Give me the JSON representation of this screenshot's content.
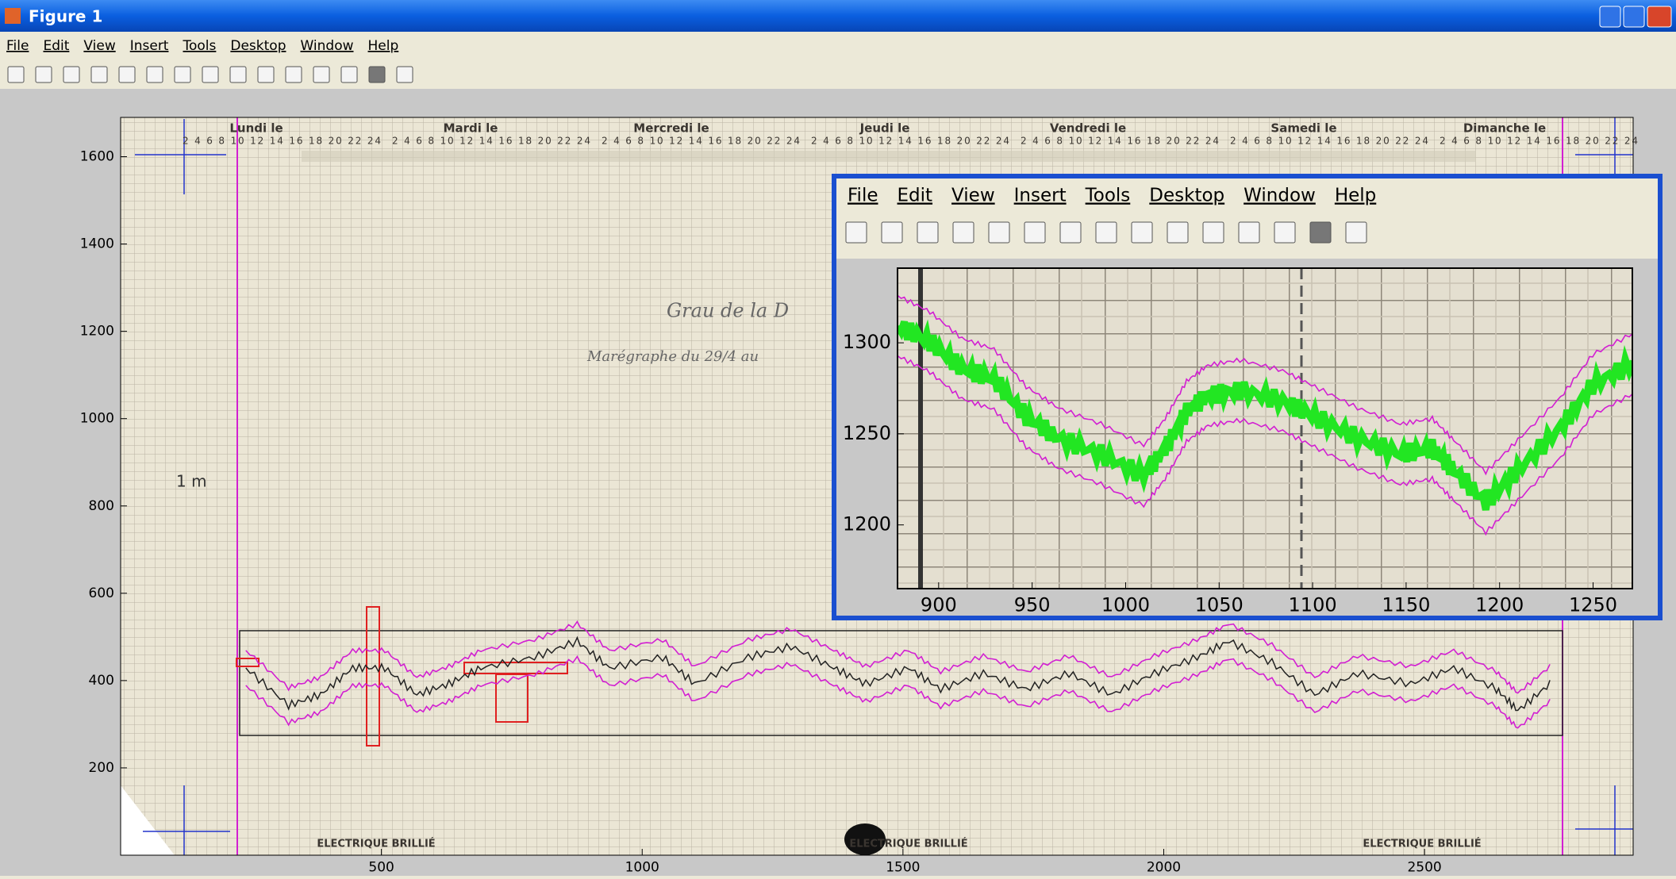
{
  "window": {
    "title": "Figure 1",
    "menu": [
      "File",
      "Edit",
      "View",
      "Insert",
      "Tools",
      "Desktop",
      "Window",
      "Help"
    ]
  },
  "scan": {
    "days": [
      "Lundi le",
      "Mardi le",
      "Mercredi le",
      "Jeudi le",
      "Vendredi le",
      "Samedi le",
      "Dimanche le"
    ],
    "hour_scale": "2 4 6 8 10 12 14 16 18 20 22 24",
    "footer": [
      "ELECTRIQUE BRILLIÉ",
      "ELECTRIQUE BRILLIÉ",
      "ELECTRIQUE BRILLIÉ"
    ],
    "scale_note": "1 m",
    "handwriting": [
      "Grau de la D",
      "Marégraphe du 29/4 au"
    ]
  },
  "inset": {
    "menu": [
      "File",
      "Edit",
      "View",
      "Insert",
      "Tools",
      "Desktop",
      "Window",
      "Help"
    ]
  },
  "chart_data": [
    {
      "type": "image",
      "xlim": [
        0,
        2900
      ],
      "ylim": [
        1690,
        0
      ],
      "xticks": [
        500,
        1000,
        1500,
        2000,
        2500
      ],
      "yticks": [
        200,
        400,
        600,
        800,
        1000,
        1200,
        1400,
        1600
      ]
    },
    {
      "type": "image",
      "xlim": [
        878,
        1271
      ],
      "ylim": [
        1341,
        1165
      ],
      "xticks": [
        900,
        950,
        1000,
        1050,
        1100,
        1150,
        1200,
        1250
      ],
      "yticks": [
        1200,
        1250,
        1300
      ]
    }
  ]
}
